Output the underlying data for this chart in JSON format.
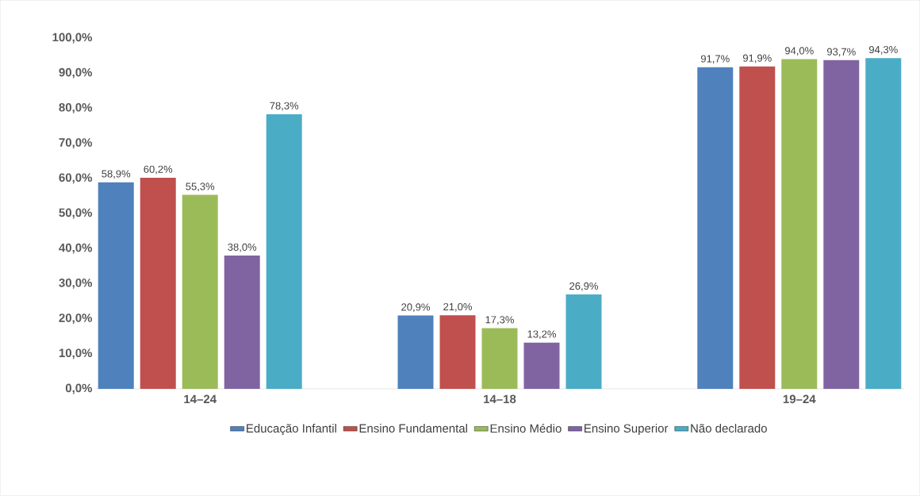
{
  "chart_data": {
    "type": "bar",
    "categories": [
      "14–24",
      "14–18",
      "19–24"
    ],
    "series": [
      {
        "name": "Educação Infantil",
        "color": "#4f81bd",
        "values": [
          58.9,
          20.9,
          91.7
        ],
        "value_labels": [
          "58,9%",
          "20,9%",
          "91,7%"
        ]
      },
      {
        "name": "Ensino Fundamental",
        "color": "#c0504d",
        "values": [
          60.2,
          21.0,
          91.9
        ],
        "value_labels": [
          "60,2%",
          "21,0%",
          "91,9%"
        ]
      },
      {
        "name": "Ensino Médio",
        "color": "#9bbb59",
        "values": [
          55.3,
          17.3,
          94.0
        ],
        "value_labels": [
          "55,3%",
          "17,3%",
          "94,0%"
        ]
      },
      {
        "name": "Ensino Superior",
        "color": "#8064a2",
        "values": [
          38.0,
          13.2,
          93.7
        ],
        "value_labels": [
          "38,0%",
          "13,2%",
          "93,7%"
        ]
      },
      {
        "name": "Não declarado",
        "color": "#4bacc6",
        "values": [
          78.3,
          26.9,
          94.3
        ],
        "value_labels": [
          "78,3%",
          "26,9%",
          "94,3%"
        ]
      }
    ],
    "ylim": [
      0,
      100
    ],
    "yticks": [
      {
        "value": 0,
        "label": "0,0%"
      },
      {
        "value": 10,
        "label": "10,0%"
      },
      {
        "value": 20,
        "label": "20,0%"
      },
      {
        "value": 30,
        "label": "30,0%"
      },
      {
        "value": 40,
        "label": "40,0%"
      },
      {
        "value": 50,
        "label": "50,0%"
      },
      {
        "value": 60,
        "label": "60,0%"
      },
      {
        "value": 70,
        "label": "70,0%"
      },
      {
        "value": 80,
        "label": "80,0%"
      },
      {
        "value": 90,
        "label": "90,0%"
      },
      {
        "value": 100,
        "label": "100,0%"
      }
    ],
    "legend": "bottom"
  }
}
